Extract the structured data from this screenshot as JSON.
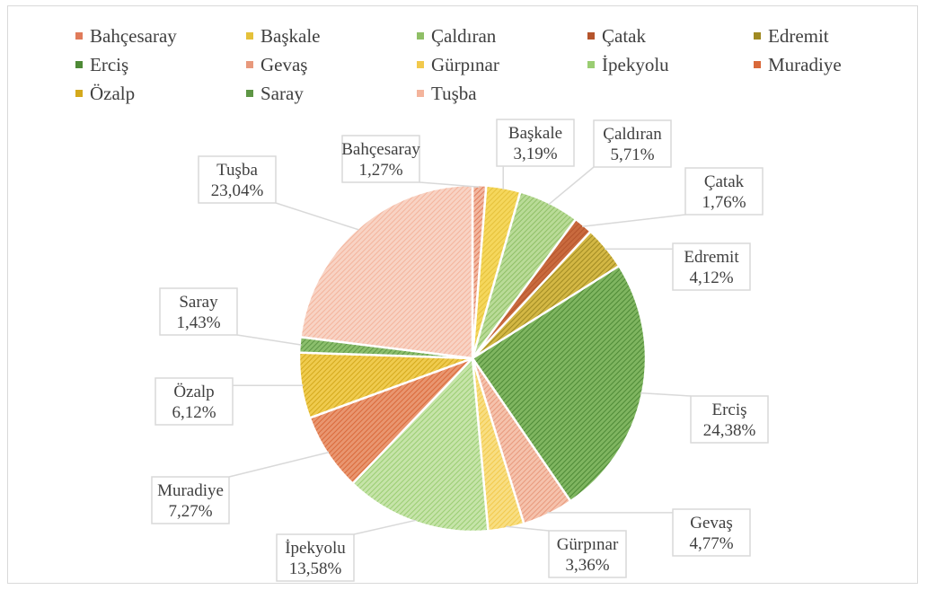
{
  "chart_data": {
    "type": "pie",
    "legend_position": "top",
    "slices": [
      {
        "label": "Bahçesaray",
        "value": 1.27,
        "value_label": "1,27%",
        "color": "#E07B5A",
        "fill": "#F2B79F"
      },
      {
        "label": "Başkale",
        "value": 3.19,
        "value_label": "3,19%",
        "color": "#E5C13A",
        "fill": "#F5D75C"
      },
      {
        "label": "Çaldıran",
        "value": 5.71,
        "value_label": "5,71%",
        "color": "#8FBF66",
        "fill": "#B9DB97"
      },
      {
        "label": "Çatak",
        "value": 1.76,
        "value_label": "1,76%",
        "color": "#B5542C",
        "fill": "#C96A3E"
      },
      {
        "label": "Edremit",
        "value": 4.12,
        "value_label": "4,12%",
        "color": "#A08A22",
        "fill": "#D3B744"
      },
      {
        "label": "Erciş",
        "value": 24.38,
        "value_label": "24,38%",
        "color": "#4E8A36",
        "fill": "#7FB560"
      },
      {
        "label": "Gevaş",
        "value": 4.77,
        "value_label": "4,77%",
        "color": "#E8997C",
        "fill": "#F5C2AC"
      },
      {
        "label": "Gürpınar",
        "value": 3.36,
        "value_label": "3,36%",
        "color": "#F2C94C",
        "fill": "#F8DE82"
      },
      {
        "label": "İpekyolu",
        "value": 13.58,
        "value_label": "13,58%",
        "color": "#9ACD72",
        "fill": "#C6E4A9"
      },
      {
        "label": "Muradiye",
        "value": 7.27,
        "value_label": "7,27%",
        "color": "#D9693A",
        "fill": "#E99670"
      },
      {
        "label": "Özalp",
        "value": 6.12,
        "value_label": "6,12%",
        "color": "#D4A91C",
        "fill": "#EFCB4E"
      },
      {
        "label": "Saray",
        "value": 1.43,
        "value_label": "1,43%",
        "color": "#5E9645",
        "fill": "#8BBE6C"
      },
      {
        "label": "Tuşba",
        "value": 23.04,
        "value_label": "23,04%",
        "color": "#F4B49C",
        "fill": "#F8D3C4"
      }
    ]
  }
}
